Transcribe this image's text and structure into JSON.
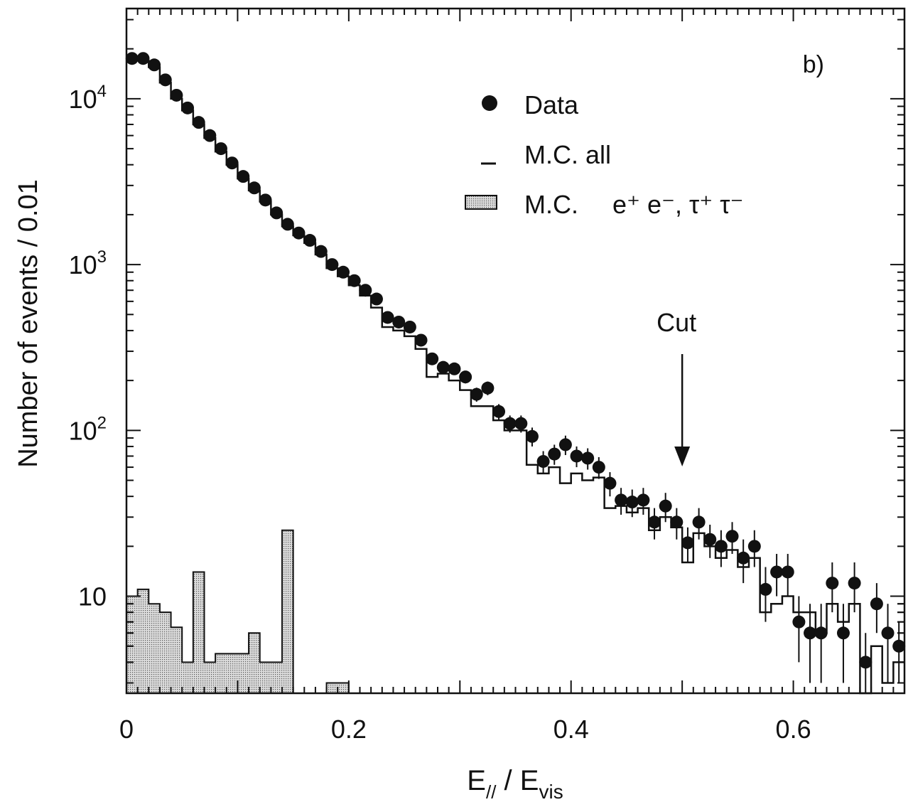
{
  "chart_data": {
    "type": "histogram",
    "panel_label": "b)",
    "xlabel": {
      "main": "E",
      "sub1": "//",
      "mid": " / E",
      "sub2": "vis"
    },
    "ylabel": "Number of events / 0.01",
    "xlim": [
      0,
      0.7
    ],
    "ylim": [
      2.6,
      35000
    ],
    "yscale": "log",
    "x_ticks": [
      {
        "value": 0,
        "label": "0"
      },
      {
        "value": 0.2,
        "label": "0.2"
      },
      {
        "value": 0.4,
        "label": "0.4"
      },
      {
        "value": 0.6,
        "label": "0.6"
      }
    ],
    "y_ticks": [
      {
        "value": 10,
        "base": "10",
        "exp": ""
      },
      {
        "value": 100,
        "base": "10",
        "exp": "2"
      },
      {
        "value": 1000,
        "base": "10",
        "exp": "3"
      },
      {
        "value": 10000,
        "base": "10",
        "exp": "4"
      }
    ],
    "legend": {
      "data": "Data",
      "mc_all": "M.C. all",
      "mc_bg_prefix": "M.C.",
      "mc_bg_label": "e⁺ e⁻, τ⁺ τ⁻"
    },
    "annotation": {
      "label": "Cut",
      "x": 0.5
    },
    "series": [
      {
        "name": "Data",
        "style": "points",
        "x": [
          0.005,
          0.015,
          0.025,
          0.035,
          0.045,
          0.055,
          0.065,
          0.075,
          0.085,
          0.095,
          0.105,
          0.115,
          0.125,
          0.135,
          0.145,
          0.155,
          0.165,
          0.175,
          0.185,
          0.195,
          0.205,
          0.215,
          0.225,
          0.235,
          0.245,
          0.255,
          0.265,
          0.275,
          0.285,
          0.295,
          0.305,
          0.315,
          0.325,
          0.335,
          0.345,
          0.355,
          0.365,
          0.375,
          0.385,
          0.395,
          0.405,
          0.415,
          0.425,
          0.435,
          0.445,
          0.455,
          0.465,
          0.475,
          0.485,
          0.495,
          0.505,
          0.515,
          0.525,
          0.535,
          0.545,
          0.555,
          0.565,
          0.575,
          0.585,
          0.595,
          0.605,
          0.615,
          0.625,
          0.635,
          0.645,
          0.655,
          0.665,
          0.675,
          0.685,
          0.695
        ],
        "y": [
          17500,
          17500,
          16000,
          13000,
          10500,
          8800,
          7200,
          6000,
          5000,
          4100,
          3400,
          2900,
          2450,
          2050,
          1750,
          1550,
          1400,
          1200,
          1000,
          900,
          800,
          700,
          620,
          480,
          450,
          420,
          350,
          270,
          240,
          235,
          210,
          165,
          180,
          130,
          110,
          110,
          92,
          65,
          72,
          82,
          70,
          68,
          60,
          48,
          38,
          37,
          38,
          28,
          35,
          28,
          21,
          28,
          22,
          20,
          23,
          17,
          20,
          11,
          14,
          14,
          7,
          6,
          6,
          12,
          6,
          12,
          4,
          9,
          6,
          5
        ],
        "yerr": [
          180,
          180,
          170,
          150,
          130,
          120,
          110,
          100,
          90,
          80,
          75,
          70,
          65,
          60,
          55,
          50,
          48,
          45,
          40,
          38,
          36,
          33,
          31,
          27,
          26,
          25,
          23,
          20,
          19,
          19,
          18,
          16,
          17,
          14,
          13,
          13,
          12,
          10,
          10,
          11,
          10,
          10,
          9,
          8,
          7,
          7,
          7,
          6,
          7,
          6,
          5,
          6,
          5,
          5,
          5,
          5,
          5,
          4,
          4,
          4,
          3,
          3,
          3,
          4,
          3,
          4,
          2,
          3,
          3,
          2
        ]
      },
      {
        "name": "M.C. all",
        "style": "step",
        "edges": [
          0,
          0.01,
          0.02,
          0.03,
          0.04,
          0.05,
          0.06,
          0.07,
          0.08,
          0.09,
          0.1,
          0.11,
          0.12,
          0.13,
          0.14,
          0.15,
          0.16,
          0.17,
          0.18,
          0.19,
          0.2,
          0.21,
          0.22,
          0.23,
          0.24,
          0.25,
          0.26,
          0.27,
          0.28,
          0.29,
          0.3,
          0.31,
          0.32,
          0.33,
          0.34,
          0.35,
          0.36,
          0.37,
          0.38,
          0.39,
          0.4,
          0.41,
          0.42,
          0.43,
          0.44,
          0.45,
          0.46,
          0.47,
          0.48,
          0.49,
          0.5,
          0.51,
          0.52,
          0.53,
          0.54,
          0.55,
          0.56,
          0.57,
          0.58,
          0.59,
          0.6,
          0.61,
          0.62,
          0.63,
          0.64,
          0.65,
          0.66,
          0.67,
          0.68,
          0.69,
          0.7
        ],
        "values": [
          17000,
          17000,
          15500,
          12500,
          10000,
          8500,
          7000,
          5800,
          4800,
          4000,
          3300,
          2800,
          2400,
          2000,
          1700,
          1500,
          1350,
          1150,
          950,
          850,
          750,
          650,
          550,
          420,
          400,
          370,
          310,
          210,
          220,
          200,
          175,
          140,
          140,
          115,
          100,
          100,
          62,
          55,
          60,
          48,
          55,
          50,
          52,
          34,
          35,
          32,
          34,
          25,
          30,
          26,
          16,
          24,
          20,
          17,
          19,
          15,
          17,
          8,
          9,
          10,
          8,
          8,
          6,
          9,
          7,
          9,
          2,
          5,
          3,
          4
        ]
      },
      {
        "name": "M.C. e⁺ e⁻, τ⁺ τ⁻",
        "style": "hatched-step",
        "edges": [
          0,
          0.01,
          0.02,
          0.03,
          0.04,
          0.05,
          0.06,
          0.07,
          0.08,
          0.09,
          0.1,
          0.11,
          0.12,
          0.13,
          0.14,
          0.15,
          0.16,
          0.17,
          0.18,
          0.19,
          0.2
        ],
        "values": [
          10,
          11,
          9,
          8,
          6.5,
          4,
          14,
          4,
          4.5,
          4.5,
          4.5,
          6,
          4,
          4,
          25,
          0,
          0,
          0,
          3,
          3
        ]
      }
    ]
  }
}
